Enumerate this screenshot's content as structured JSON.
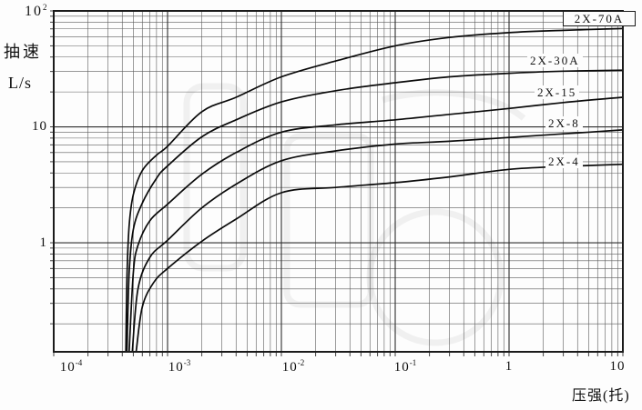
{
  "figure": {
    "y_top_tick": {
      "base": "10",
      "exp": "2"
    },
    "y_axis_title_line1": "抽速",
    "y_axis_title_line2": "L/s",
    "y_ticks": [
      {
        "label": "10"
      },
      {
        "label": "1"
      }
    ],
    "x_ticks": [
      {
        "base": "10",
        "exp": "-4"
      },
      {
        "base": "10",
        "exp": "-3"
      },
      {
        "base": "10",
        "exp": "-2"
      },
      {
        "base": "10",
        "exp": "-1"
      },
      {
        "base": "1",
        "exp": ""
      },
      {
        "base": "10",
        "exp": ""
      }
    ],
    "x_axis_label": "压强(托)"
  },
  "chart_data": {
    "type": "line",
    "title": "",
    "xlabel": "压强(托)",
    "ylabel": "抽速 L/s",
    "x_scale": "log",
    "y_scale": "log",
    "xlim": [
      0.0001,
      10
    ],
    "ylim": [
      0.1146,
      100
    ],
    "grid": true,
    "x_major_ticks": [
      "1e-4",
      "1e-3",
      "1e-2",
      "1e-1",
      "1",
      "10"
    ],
    "y_major_ticks": [
      "1",
      "10",
      "100"
    ],
    "legend_position": "labels-at-right-of-curves",
    "series": [
      {
        "name": "2X-70A",
        "points": [
          [
            0.00043,
            0.115
          ],
          [
            0.00044,
            0.5
          ],
          [
            0.00046,
            1.4
          ],
          [
            0.0005,
            2.6
          ],
          [
            0.0006,
            4.2
          ],
          [
            0.0008,
            5.7
          ],
          [
            0.001,
            6.8
          ],
          [
            0.002,
            13.5
          ],
          [
            0.004,
            18
          ],
          [
            0.01,
            27
          ],
          [
            0.03,
            37
          ],
          [
            0.1,
            50
          ],
          [
            0.3,
            59
          ],
          [
            1,
            65
          ],
          [
            3,
            68
          ],
          [
            10,
            70.5
          ]
        ]
      },
      {
        "name": "2X-30A",
        "points": [
          [
            0.00044,
            0.115
          ],
          [
            0.00046,
            0.55
          ],
          [
            0.0005,
            1.3
          ],
          [
            0.0006,
            2.2
          ],
          [
            0.0008,
            3.6
          ],
          [
            0.001,
            4.6
          ],
          [
            0.002,
            8.2
          ],
          [
            0.004,
            11.5
          ],
          [
            0.01,
            16.4
          ],
          [
            0.03,
            20.5
          ],
          [
            0.1,
            24
          ],
          [
            0.3,
            27
          ],
          [
            1,
            29
          ],
          [
            3,
            30.2
          ],
          [
            10,
            30.8
          ]
        ]
      },
      {
        "name": "2X-15",
        "points": [
          [
            0.00046,
            0.115
          ],
          [
            0.0005,
            0.55
          ],
          [
            0.00055,
            0.95
          ],
          [
            0.0007,
            1.55
          ],
          [
            0.001,
            2.15
          ],
          [
            0.002,
            3.9
          ],
          [
            0.004,
            6.0
          ],
          [
            0.01,
            9.0
          ],
          [
            0.03,
            10.4
          ],
          [
            0.1,
            11.5
          ],
          [
            0.3,
            12.8
          ],
          [
            1,
            14.4
          ],
          [
            3,
            16.2
          ],
          [
            10,
            18.0
          ]
        ]
      },
      {
        "name": "2X-8",
        "points": [
          [
            0.00049,
            0.115
          ],
          [
            0.00055,
            0.4
          ],
          [
            0.0007,
            0.75
          ],
          [
            0.001,
            1.05
          ],
          [
            0.002,
            2.0
          ],
          [
            0.004,
            3.2
          ],
          [
            0.01,
            5.1
          ],
          [
            0.03,
            6.2
          ],
          [
            0.1,
            7.1
          ],
          [
            0.3,
            7.5
          ],
          [
            1,
            8.1
          ],
          [
            3,
            8.7
          ],
          [
            10,
            9.4
          ]
        ]
      },
      {
        "name": "2X-4",
        "points": [
          [
            0.00053,
            0.115
          ],
          [
            0.0006,
            0.28
          ],
          [
            0.00075,
            0.45
          ],
          [
            0.001,
            0.6
          ],
          [
            0.002,
            1.03
          ],
          [
            0.004,
            1.6
          ],
          [
            0.01,
            2.7
          ],
          [
            0.03,
            3.0
          ],
          [
            0.1,
            3.3
          ],
          [
            0.3,
            3.7
          ],
          [
            1,
            4.3
          ],
          [
            3,
            4.55
          ],
          [
            10,
            4.75
          ]
        ]
      }
    ]
  }
}
